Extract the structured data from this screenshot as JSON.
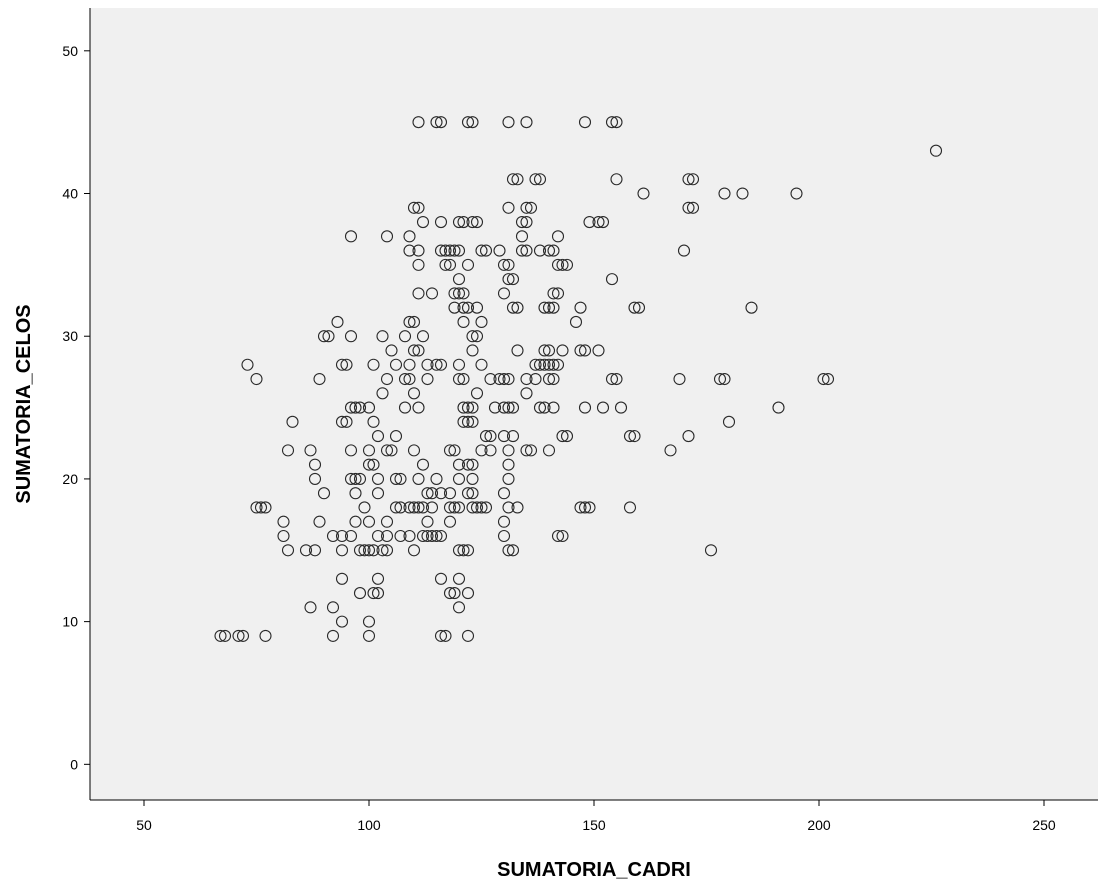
{
  "chart_data": {
    "type": "scatter",
    "xlabel": "SUMATORIA_CADRI",
    "ylabel": "SUMATORIA_CELOS",
    "xlim": [
      38,
      262
    ],
    "ylim": [
      -2.5,
      53
    ],
    "xticks": [
      50,
      100,
      150,
      200,
      250
    ],
    "yticks": [
      0,
      10,
      20,
      30,
      40,
      50
    ],
    "grid": false,
    "marker": "hollow-circle",
    "colors": {
      "plot_background": "#f0f0f0",
      "marker_stroke": "#2a2a2a",
      "axis": "#000000"
    },
    "points": [
      [
        67,
        9
      ],
      [
        68,
        9
      ],
      [
        71,
        9
      ],
      [
        72,
        9
      ],
      [
        77,
        9
      ],
      [
        92,
        9
      ],
      [
        100,
        9
      ],
      [
        116,
        9
      ],
      [
        117,
        9
      ],
      [
        122,
        9
      ],
      [
        87,
        11
      ],
      [
        92,
        11
      ],
      [
        101,
        12
      ],
      [
        102,
        12
      ],
      [
        118,
        12
      ],
      [
        119,
        12
      ],
      [
        122,
        12
      ],
      [
        98,
        12
      ],
      [
        120,
        11
      ],
      [
        94,
        10
      ],
      [
        100,
        10
      ],
      [
        116,
        13
      ],
      [
        102,
        13
      ],
      [
        120,
        13
      ],
      [
        94,
        13
      ],
      [
        88,
        15
      ],
      [
        82,
        15
      ],
      [
        86,
        15
      ],
      [
        94,
        15
      ],
      [
        98,
        15
      ],
      [
        99,
        15
      ],
      [
        100,
        15
      ],
      [
        101,
        15
      ],
      [
        103,
        15
      ],
      [
        104,
        15
      ],
      [
        110,
        15
      ],
      [
        121,
        15
      ],
      [
        122,
        15
      ],
      [
        131,
        15
      ],
      [
        132,
        15
      ],
      [
        176,
        15
      ],
      [
        120,
        15
      ],
      [
        81,
        16
      ],
      [
        92,
        16
      ],
      [
        94,
        16
      ],
      [
        96,
        16
      ],
      [
        102,
        16
      ],
      [
        104,
        16
      ],
      [
        107,
        16
      ],
      [
        109,
        16
      ],
      [
        112,
        16
      ],
      [
        113,
        16
      ],
      [
        114,
        16
      ],
      [
        115,
        16
      ],
      [
        116,
        16
      ],
      [
        130,
        16
      ],
      [
        142,
        16
      ],
      [
        143,
        16
      ],
      [
        81,
        17
      ],
      [
        89,
        17
      ],
      [
        97,
        17
      ],
      [
        100,
        17
      ],
      [
        104,
        17
      ],
      [
        113,
        17
      ],
      [
        118,
        17
      ],
      [
        130,
        17
      ],
      [
        75,
        18
      ],
      [
        76,
        18
      ],
      [
        77,
        18
      ],
      [
        99,
        18
      ],
      [
        106,
        18
      ],
      [
        107,
        18
      ],
      [
        109,
        18
      ],
      [
        110,
        18
      ],
      [
        111,
        18
      ],
      [
        112,
        18
      ],
      [
        114,
        18
      ],
      [
        118,
        18
      ],
      [
        119,
        18
      ],
      [
        120,
        18
      ],
      [
        123,
        18
      ],
      [
        124,
        18
      ],
      [
        125,
        18
      ],
      [
        126,
        18
      ],
      [
        131,
        18
      ],
      [
        133,
        18
      ],
      [
        147,
        18
      ],
      [
        148,
        18
      ],
      [
        149,
        18
      ],
      [
        158,
        18
      ],
      [
        90,
        19
      ],
      [
        97,
        19
      ],
      [
        102,
        19
      ],
      [
        113,
        19
      ],
      [
        114,
        19
      ],
      [
        116,
        19
      ],
      [
        118,
        19
      ],
      [
        122,
        19
      ],
      [
        123,
        19
      ],
      [
        130,
        19
      ],
      [
        88,
        20
      ],
      [
        96,
        20
      ],
      [
        97,
        20
      ],
      [
        98,
        20
      ],
      [
        102,
        20
      ],
      [
        106,
        20
      ],
      [
        107,
        20
      ],
      [
        111,
        20
      ],
      [
        115,
        20
      ],
      [
        120,
        20
      ],
      [
        123,
        20
      ],
      [
        131,
        20
      ],
      [
        88,
        21
      ],
      [
        100,
        21
      ],
      [
        101,
        21
      ],
      [
        112,
        21
      ],
      [
        120,
        21
      ],
      [
        122,
        21
      ],
      [
        123,
        21
      ],
      [
        131,
        21
      ],
      [
        82,
        22
      ],
      [
        87,
        22
      ],
      [
        96,
        22
      ],
      [
        100,
        22
      ],
      [
        104,
        22
      ],
      [
        105,
        22
      ],
      [
        110,
        22
      ],
      [
        118,
        22
      ],
      [
        119,
        22
      ],
      [
        125,
        22
      ],
      [
        127,
        22
      ],
      [
        131,
        22
      ],
      [
        135,
        22
      ],
      [
        136,
        22
      ],
      [
        140,
        22
      ],
      [
        167,
        22
      ],
      [
        102,
        23
      ],
      [
        106,
        23
      ],
      [
        126,
        23
      ],
      [
        127,
        23
      ],
      [
        130,
        23
      ],
      [
        132,
        23
      ],
      [
        143,
        23
      ],
      [
        144,
        23
      ],
      [
        158,
        23
      ],
      [
        159,
        23
      ],
      [
        171,
        23
      ],
      [
        83,
        24
      ],
      [
        94,
        24
      ],
      [
        95,
        24
      ],
      [
        101,
        24
      ],
      [
        121,
        24
      ],
      [
        122,
        24
      ],
      [
        123,
        24
      ],
      [
        180,
        24
      ],
      [
        96,
        25
      ],
      [
        97,
        25
      ],
      [
        98,
        25
      ],
      [
        100,
        25
      ],
      [
        108,
        25
      ],
      [
        111,
        25
      ],
      [
        121,
        25
      ],
      [
        122,
        25
      ],
      [
        123,
        25
      ],
      [
        128,
        25
      ],
      [
        130,
        25
      ],
      [
        131,
        25
      ],
      [
        132,
        25
      ],
      [
        138,
        25
      ],
      [
        139,
        25
      ],
      [
        141,
        25
      ],
      [
        148,
        25
      ],
      [
        152,
        25
      ],
      [
        156,
        25
      ],
      [
        191,
        25
      ],
      [
        103,
        26
      ],
      [
        110,
        26
      ],
      [
        124,
        26
      ],
      [
        135,
        26
      ],
      [
        75,
        27
      ],
      [
        89,
        27
      ],
      [
        104,
        27
      ],
      [
        108,
        27
      ],
      [
        109,
        27
      ],
      [
        113,
        27
      ],
      [
        120,
        27
      ],
      [
        121,
        27
      ],
      [
        127,
        27
      ],
      [
        129,
        27
      ],
      [
        130,
        27
      ],
      [
        131,
        27
      ],
      [
        135,
        27
      ],
      [
        137,
        27
      ],
      [
        140,
        27
      ],
      [
        141,
        27
      ],
      [
        154,
        27
      ],
      [
        155,
        27
      ],
      [
        169,
        27
      ],
      [
        178,
        27
      ],
      [
        179,
        27
      ],
      [
        201,
        27
      ],
      [
        202,
        27
      ],
      [
        73,
        28
      ],
      [
        94,
        28
      ],
      [
        95,
        28
      ],
      [
        101,
        28
      ],
      [
        106,
        28
      ],
      [
        109,
        28
      ],
      [
        113,
        28
      ],
      [
        115,
        28
      ],
      [
        116,
        28
      ],
      [
        120,
        28
      ],
      [
        125,
        28
      ],
      [
        137,
        28
      ],
      [
        138,
        28
      ],
      [
        139,
        28
      ],
      [
        140,
        28
      ],
      [
        141,
        28
      ],
      [
        142,
        28
      ],
      [
        105,
        29
      ],
      [
        110,
        29
      ],
      [
        111,
        29
      ],
      [
        123,
        29
      ],
      [
        133,
        29
      ],
      [
        139,
        29
      ],
      [
        140,
        29
      ],
      [
        143,
        29
      ],
      [
        147,
        29
      ],
      [
        148,
        29
      ],
      [
        151,
        29
      ],
      [
        90,
        30
      ],
      [
        91,
        30
      ],
      [
        96,
        30
      ],
      [
        103,
        30
      ],
      [
        108,
        30
      ],
      [
        112,
        30
      ],
      [
        123,
        30
      ],
      [
        124,
        30
      ],
      [
        93,
        31
      ],
      [
        109,
        31
      ],
      [
        110,
        31
      ],
      [
        121,
        31
      ],
      [
        125,
        31
      ],
      [
        146,
        31
      ],
      [
        119,
        32
      ],
      [
        121,
        32
      ],
      [
        122,
        32
      ],
      [
        124,
        32
      ],
      [
        132,
        32
      ],
      [
        133,
        32
      ],
      [
        139,
        32
      ],
      [
        140,
        32
      ],
      [
        141,
        32
      ],
      [
        147,
        32
      ],
      [
        159,
        32
      ],
      [
        160,
        32
      ],
      [
        185,
        32
      ],
      [
        111,
        33
      ],
      [
        114,
        33
      ],
      [
        119,
        33
      ],
      [
        120,
        33
      ],
      [
        121,
        33
      ],
      [
        130,
        33
      ],
      [
        141,
        33
      ],
      [
        142,
        33
      ],
      [
        120,
        34
      ],
      [
        131,
        34
      ],
      [
        132,
        34
      ],
      [
        154,
        34
      ],
      [
        111,
        35
      ],
      [
        117,
        35
      ],
      [
        118,
        35
      ],
      [
        122,
        35
      ],
      [
        130,
        35
      ],
      [
        131,
        35
      ],
      [
        142,
        35
      ],
      [
        143,
        35
      ],
      [
        144,
        35
      ],
      [
        109,
        36
      ],
      [
        111,
        36
      ],
      [
        116,
        36
      ],
      [
        117,
        36
      ],
      [
        118,
        36
      ],
      [
        119,
        36
      ],
      [
        120,
        36
      ],
      [
        125,
        36
      ],
      [
        126,
        36
      ],
      [
        129,
        36
      ],
      [
        134,
        36
      ],
      [
        135,
        36
      ],
      [
        138,
        36
      ],
      [
        140,
        36
      ],
      [
        141,
        36
      ],
      [
        170,
        36
      ],
      [
        96,
        37
      ],
      [
        104,
        37
      ],
      [
        109,
        37
      ],
      [
        134,
        37
      ],
      [
        142,
        37
      ],
      [
        112,
        38
      ],
      [
        116,
        38
      ],
      [
        120,
        38
      ],
      [
        121,
        38
      ],
      [
        123,
        38
      ],
      [
        124,
        38
      ],
      [
        134,
        38
      ],
      [
        135,
        38
      ],
      [
        149,
        38
      ],
      [
        151,
        38
      ],
      [
        152,
        38
      ],
      [
        110,
        39
      ],
      [
        111,
        39
      ],
      [
        131,
        39
      ],
      [
        135,
        39
      ],
      [
        136,
        39
      ],
      [
        171,
        39
      ],
      [
        172,
        39
      ],
      [
        161,
        40
      ],
      [
        179,
        40
      ],
      [
        183,
        40
      ],
      [
        195,
        40
      ],
      [
        132,
        41
      ],
      [
        133,
        41
      ],
      [
        137,
        41
      ],
      [
        138,
        41
      ],
      [
        155,
        41
      ],
      [
        171,
        41
      ],
      [
        172,
        41
      ],
      [
        226,
        43
      ],
      [
        111,
        45
      ],
      [
        115,
        45
      ],
      [
        116,
        45
      ],
      [
        122,
        45
      ],
      [
        123,
        45
      ],
      [
        131,
        45
      ],
      [
        135,
        45
      ],
      [
        148,
        45
      ],
      [
        154,
        45
      ],
      [
        155,
        45
      ]
    ]
  }
}
